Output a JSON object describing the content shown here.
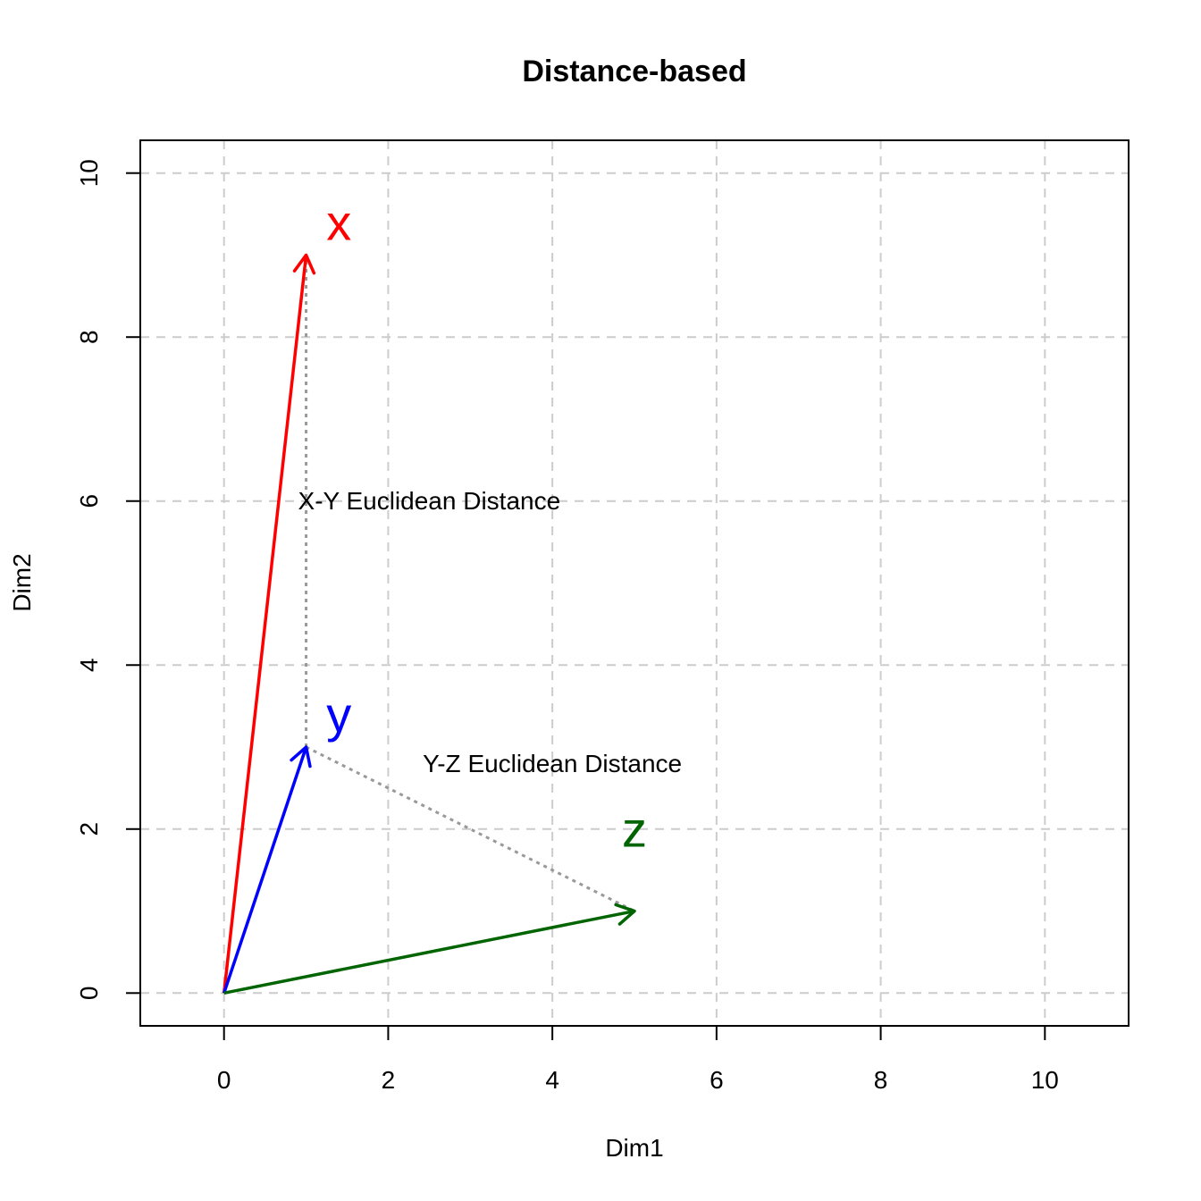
{
  "chart_data": {
    "type": "vector",
    "title": "Distance-based",
    "xlabel": "Dim1",
    "ylabel": "Dim2",
    "xlim": [
      -1.02,
      11.02
    ],
    "ylim": [
      -0.4,
      10.4
    ],
    "grid": true,
    "x_ticks": [
      0,
      2,
      4,
      6,
      8,
      10
    ],
    "y_ticks": [
      0,
      2,
      4,
      6,
      8,
      10
    ],
    "x_tick_labels": [
      "0",
      "2",
      "4",
      "6",
      "8",
      "10"
    ],
    "y_tick_labels": [
      "0",
      "2",
      "4",
      "6",
      "8",
      "10"
    ],
    "vectors": [
      {
        "name": "x",
        "from": [
          0,
          0
        ],
        "to": [
          1,
          9
        ],
        "color": "#ff0000",
        "label_at": [
          1.4,
          9.4
        ]
      },
      {
        "name": "y",
        "from": [
          0,
          0
        ],
        "to": [
          1,
          3
        ],
        "color": "#0000ff",
        "label_at": [
          1.4,
          3.4
        ]
      },
      {
        "name": "z",
        "from": [
          0,
          0
        ],
        "to": [
          5,
          1
        ],
        "color": "#006400",
        "label_at": [
          5,
          2
        ]
      }
    ],
    "distances": [
      {
        "label": "X-Y Euclidean Distance",
        "from": [
          1,
          3
        ],
        "to": [
          1,
          9
        ],
        "label_at": [
          2.5,
          6
        ]
      },
      {
        "label": "Y-Z Euclidean Distance",
        "from": [
          1,
          3
        ],
        "to": [
          5,
          1
        ],
        "label_at": [
          4,
          2.8
        ]
      }
    ],
    "distance_line_color": "#999999",
    "grid_color": "#cccccc"
  }
}
